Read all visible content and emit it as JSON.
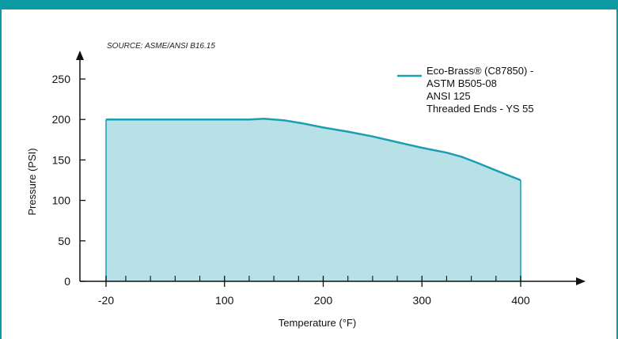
{
  "colors": {
    "frame": "#0c9aa5",
    "line": "#1a9fb0",
    "fill": "#b7e0e7",
    "axis": "#111111"
  },
  "chart_data": {
    "type": "area",
    "source_note": "SOURCE: ASME/ANSI B16.15",
    "xlabel": "Temperature (°F)",
    "ylabel": "Pressure (PSI)",
    "xlim": [
      -20,
      400
    ],
    "ylim": [
      0,
      250
    ],
    "x_ticks": [
      -20,
      100,
      200,
      300,
      400
    ],
    "x_tick_labels": [
      "-20",
      "100",
      "200",
      "300",
      "400"
    ],
    "x_minor_ticks": [
      0,
      25,
      50,
      75,
      125,
      150,
      175,
      225,
      250,
      275,
      325,
      350,
      375
    ],
    "y_ticks": [
      0,
      50,
      100,
      150,
      200,
      250
    ],
    "y_tick_labels": [
      "0",
      "50",
      "100",
      "150",
      "200",
      "250"
    ],
    "grid": false,
    "legend_position": "top-right",
    "series": [
      {
        "name": [
          "Eco-Brass® (C87850) -",
          "ASTM B505-08",
          "ANSI 125",
          "Threaded Ends - YS 55"
        ],
        "x": [
          -20,
          125,
          140,
          160,
          180,
          200,
          225,
          250,
          275,
          300,
          325,
          340,
          355,
          375,
          400
        ],
        "y": [
          200,
          200,
          201,
          199,
          195,
          190,
          185,
          179,
          172,
          165,
          159,
          154,
          147,
          137,
          125
        ]
      }
    ]
  }
}
